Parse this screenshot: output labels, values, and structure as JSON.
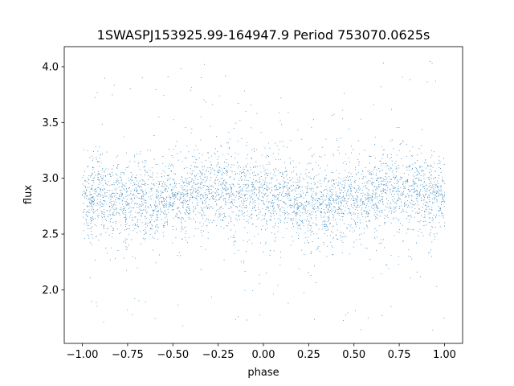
{
  "chart_data": {
    "type": "scatter",
    "title": "1SWASPJ153925.99-164947.9 Period 753070.0625s",
    "xlabel": "phase",
    "ylabel": "flux",
    "xlim": [
      -1.1,
      1.1
    ],
    "ylim": [
      1.52,
      4.18
    ],
    "xticks": [
      -1.0,
      -0.75,
      -0.5,
      -0.25,
      0.0,
      0.25,
      0.5,
      0.75,
      1.0
    ],
    "xtick_labels": [
      "−1.00",
      "−0.75",
      "−0.50",
      "−0.25",
      "0.00",
      "0.25",
      "0.50",
      "0.75",
      "1.00"
    ],
    "yticks": [
      2.0,
      2.5,
      3.0,
      3.5,
      4.0
    ],
    "ytick_labels": [
      "2.0",
      "2.5",
      "3.0",
      "3.5",
      "4.0"
    ],
    "grid": false,
    "series": [
      {
        "color": "#1f77b4",
        "marker_style": "dense-dots",
        "x_range": [
          -1.0,
          1.0
        ],
        "y_center": 2.84,
        "y_core_spread": [
          2.5,
          3.15
        ],
        "y_full_range": [
          1.62,
          4.06
        ],
        "points": [
          [
            -1.0,
            2.85
          ],
          [
            -0.95,
            2.8
          ],
          [
            -0.9,
            2.9
          ],
          [
            -0.85,
            2.75
          ],
          [
            -0.8,
            2.82
          ],
          [
            -0.75,
            2.78
          ],
          [
            -0.7,
            2.88
          ],
          [
            -0.65,
            2.8
          ],
          [
            -0.6,
            2.76
          ],
          [
            -0.55,
            2.82
          ],
          [
            -0.5,
            2.85
          ],
          [
            -0.45,
            2.78
          ],
          [
            -0.4,
            2.9
          ],
          [
            -0.35,
            2.92
          ],
          [
            -0.3,
            2.88
          ],
          [
            -0.25,
            2.9
          ],
          [
            -0.2,
            2.86
          ],
          [
            -0.15,
            2.88
          ],
          [
            -0.1,
            2.85
          ],
          [
            -0.05,
            2.87
          ],
          [
            0.0,
            2.83
          ],
          [
            0.05,
            2.8
          ],
          [
            0.1,
            2.85
          ],
          [
            0.15,
            2.8
          ],
          [
            0.2,
            2.75
          ],
          [
            0.25,
            2.78
          ],
          [
            0.3,
            2.8
          ],
          [
            0.35,
            2.76
          ],
          [
            0.4,
            2.8
          ],
          [
            0.45,
            2.82
          ],
          [
            0.5,
            2.8
          ],
          [
            0.55,
            2.78
          ],
          [
            0.6,
            2.84
          ],
          [
            0.65,
            2.88
          ],
          [
            0.7,
            2.9
          ],
          [
            0.75,
            2.88
          ],
          [
            0.8,
            2.9
          ],
          [
            0.85,
            2.86
          ],
          [
            0.9,
            2.88
          ],
          [
            0.95,
            2.85
          ],
          [
            1.0,
            2.85
          ]
        ]
      }
    ]
  }
}
